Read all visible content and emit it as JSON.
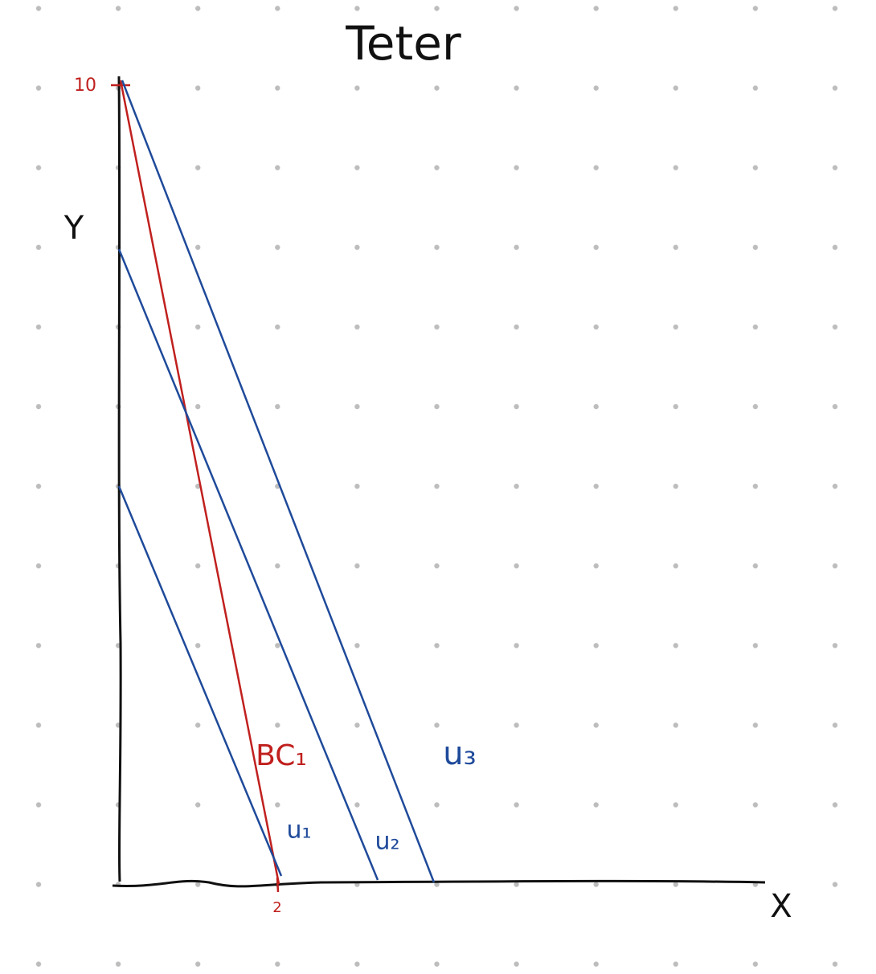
{
  "title": "Teter",
  "axes": {
    "y_label": "Y",
    "x_label": "X",
    "y_mark": "10",
    "x_mark": "2"
  },
  "lines": [
    {
      "label": "BC₁"
    },
    {
      "label": "u₁"
    },
    {
      "label": "u₂"
    },
    {
      "label": "u₃"
    }
  ]
}
